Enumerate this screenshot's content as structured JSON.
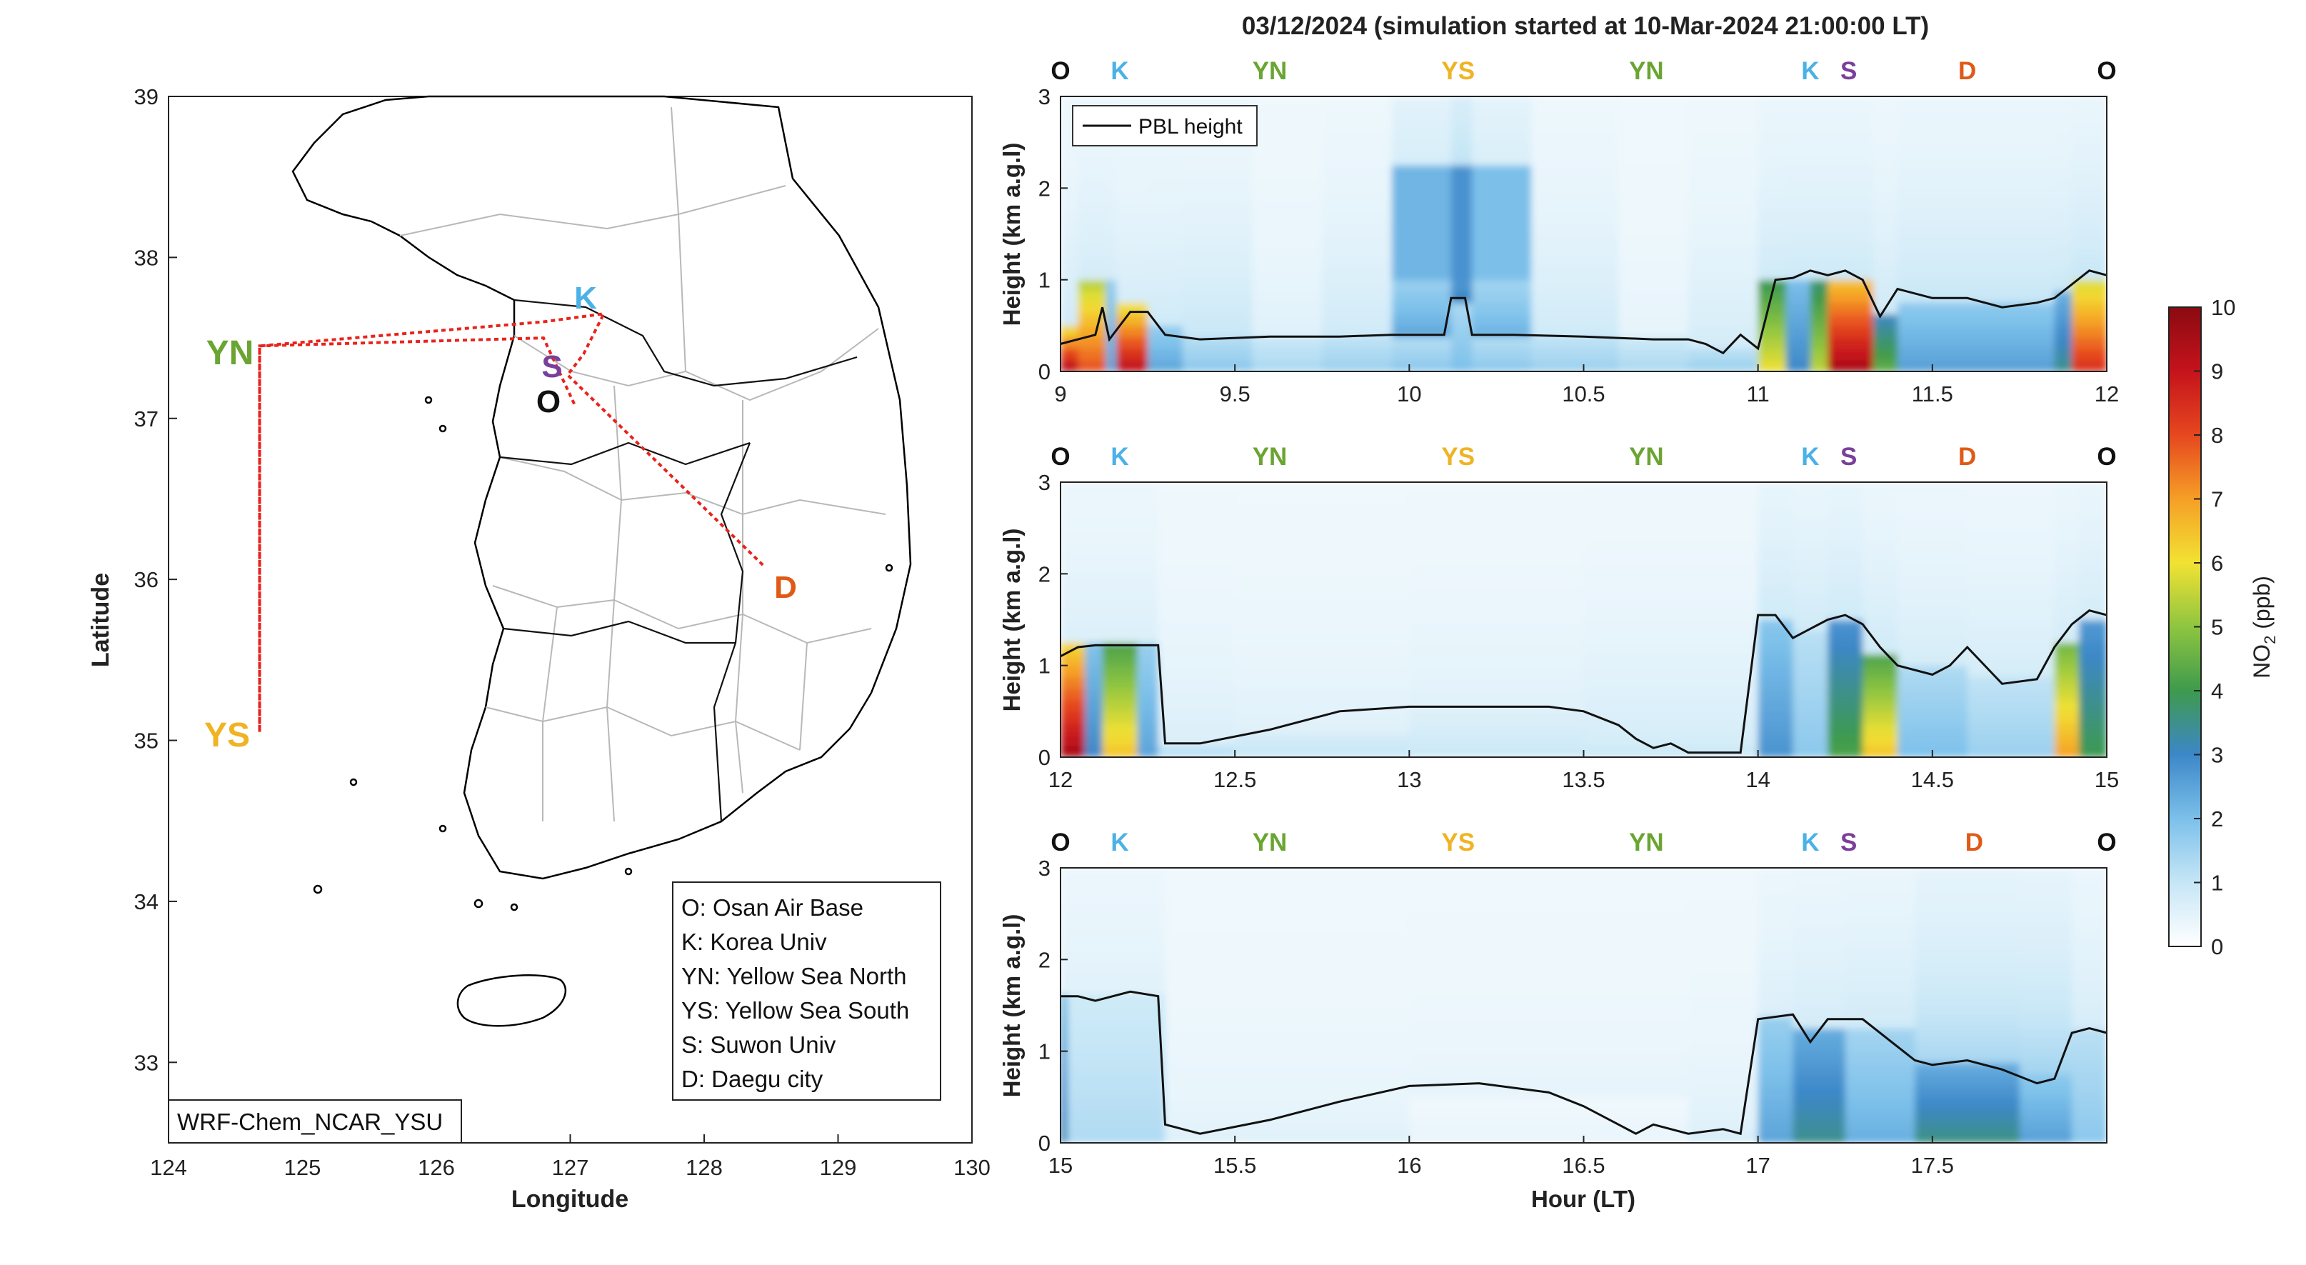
{
  "title": "03/12/2024 (simulation started at 10-Mar-2024 21:00:00 LT)",
  "colors": {
    "O": "#111111",
    "K": "#4bb1e6",
    "YN": "#6aa532",
    "YS": "#f0b323",
    "S": "#7a3f9b",
    "D": "#e05a16",
    "route": "#e8231c",
    "pbl": "#111111"
  },
  "map": {
    "xlabel": "Longitude",
    "ylabel": "Latitude",
    "xlim": [
      124,
      130
    ],
    "ylim": [
      32.5,
      39
    ],
    "xticks": [
      "124",
      "125",
      "126",
      "127",
      "128",
      "129",
      "130"
    ],
    "yticks": [
      "33",
      "34",
      "35",
      "36",
      "37",
      "38",
      "39"
    ],
    "model_label": "WRF-Chem_NCAR_YSU",
    "legend": [
      "O: Osan Air Base",
      "K: Korea Univ",
      "YN: Yellow Sea North",
      "YS: Yellow Sea South",
      "S: Suwon Univ",
      "D: Daegu city"
    ],
    "sites": [
      {
        "code": "O",
        "lon": 127.03,
        "lat": 37.09
      },
      {
        "code": "K",
        "lon": 127.03,
        "lat": 37.59
      },
      {
        "code": "YN",
        "lon": 124.68,
        "lat": 37.45
      },
      {
        "code": "YS",
        "lon": 124.68,
        "lat": 35.05
      },
      {
        "code": "S",
        "lon": 126.98,
        "lat": 37.27
      },
      {
        "code": "D",
        "lon": 128.6,
        "lat": 35.87
      }
    ],
    "route": [
      [
        127.03,
        37.09
      ],
      [
        126.8,
        37.5
      ],
      [
        124.68,
        37.45
      ],
      [
        124.68,
        35.05
      ],
      [
        124.68,
        37.45
      ],
      [
        126.8,
        37.6
      ],
      [
        127.25,
        37.65
      ],
      [
        127.1,
        37.4
      ],
      [
        126.98,
        37.27
      ],
      [
        128.45,
        36.08
      ]
    ]
  },
  "chart_data": [
    {
      "type": "heatmap",
      "title": "03/12/2024 (simulation started at 10-Mar-2024 21:00:00 LT)",
      "xlabel": "",
      "ylabel": "Height (km a.g.l)",
      "xlim": [
        9,
        12
      ],
      "ylim": [
        0,
        3
      ],
      "xticks": [
        9,
        9.5,
        10,
        10.5,
        11,
        11.5,
        12
      ],
      "yticks": [
        0,
        1,
        2,
        3
      ],
      "legend": "PBL height",
      "site_labels": [
        "O",
        "K",
        "YN",
        "YS",
        "YN",
        "K",
        "S",
        "D",
        "O"
      ],
      "site_hours": [
        9.0,
        9.17,
        9.6,
        10.14,
        10.68,
        11.15,
        11.26,
        11.6,
        12.0
      ],
      "pbl": {
        "x": [
          9.0,
          9.05,
          9.1,
          9.12,
          9.14,
          9.2,
          9.25,
          9.3,
          9.4,
          9.6,
          9.8,
          9.95,
          10.1,
          10.12,
          10.16,
          10.18,
          10.3,
          10.5,
          10.7,
          10.8,
          10.85,
          10.9,
          10.95,
          11.0,
          11.05,
          11.1,
          11.15,
          11.2,
          11.25,
          11.3,
          11.35,
          11.4,
          11.5,
          11.6,
          11.7,
          11.8,
          11.85,
          11.9,
          11.95,
          12.0
        ],
        "y": [
          0.3,
          0.35,
          0.4,
          0.7,
          0.35,
          0.65,
          0.65,
          0.4,
          0.35,
          0.38,
          0.38,
          0.4,
          0.4,
          0.8,
          0.8,
          0.4,
          0.4,
          0.38,
          0.35,
          0.35,
          0.3,
          0.2,
          0.4,
          0.25,
          1.0,
          1.02,
          1.1,
          1.05,
          1.1,
          1.0,
          0.6,
          0.9,
          0.8,
          0.8,
          0.7,
          0.75,
          0.8,
          0.95,
          1.1,
          1.05
        ]
      },
      "columns": [
        {
          "x0": 9.0,
          "x1": 9.05,
          "surf": 9.5,
          "pbl": 0.45,
          "aloft": 0.6
        },
        {
          "x0": 9.05,
          "x1": 9.13,
          "surf": 8.0,
          "pbl": 1.05,
          "aloft": 0.5
        },
        {
          "x0": 9.13,
          "x1": 9.16,
          "surf": 2.5,
          "pbl": 1.0,
          "aloft": 0.5
        },
        {
          "x0": 9.16,
          "x1": 9.25,
          "surf": 9.3,
          "pbl": 0.7,
          "aloft": 0.5
        },
        {
          "x0": 9.25,
          "x1": 9.35,
          "surf": 2.5,
          "pbl": 0.5,
          "aloft": 0.6
        },
        {
          "x0": 9.35,
          "x1": 9.55,
          "surf": 1.8,
          "pbl": 0.4,
          "aloft": 0.7
        },
        {
          "x0": 9.55,
          "x1": 9.75,
          "surf": 1.4,
          "pbl": 0.4,
          "aloft": 0.3
        },
        {
          "x0": 9.75,
          "x1": 9.95,
          "surf": 1.6,
          "pbl": 0.4,
          "aloft": 0.6
        },
        {
          "x0": 9.95,
          "x1": 10.12,
          "surf": 1.8,
          "pbl": 0.4,
          "aloft": 2.2
        },
        {
          "x0": 10.12,
          "x1": 10.18,
          "surf": 2.0,
          "pbl": 0.8,
          "aloft": 2.8
        },
        {
          "x0": 10.18,
          "x1": 10.35,
          "surf": 1.8,
          "pbl": 0.4,
          "aloft": 2.0
        },
        {
          "x0": 10.35,
          "x1": 10.6,
          "surf": 1.6,
          "pbl": 0.4,
          "aloft": 0.6
        },
        {
          "x0": 10.6,
          "x1": 10.8,
          "surf": 1.4,
          "pbl": 0.35,
          "aloft": 0.2
        },
        {
          "x0": 10.8,
          "x1": 11.0,
          "surf": 1.6,
          "pbl": 0.3,
          "aloft": 0.5
        },
        {
          "x0": 11.0,
          "x1": 11.08,
          "surf": 6.0,
          "pbl": 1.0,
          "aloft": 0.6
        },
        {
          "x0": 11.08,
          "x1": 11.15,
          "surf": 3.0,
          "pbl": 1.05,
          "aloft": 0.6
        },
        {
          "x0": 11.15,
          "x1": 11.2,
          "surf": 5.5,
          "pbl": 1.05,
          "aloft": 0.6
        },
        {
          "x0": 11.2,
          "x1": 11.33,
          "surf": 9.6,
          "pbl": 1.05,
          "aloft": 0.6
        },
        {
          "x0": 11.33,
          "x1": 11.4,
          "surf": 4.5,
          "pbl": 0.65,
          "aloft": 0.6
        },
        {
          "x0": 11.4,
          "x1": 11.85,
          "surf": 2.6,
          "pbl": 0.8,
          "aloft": 0.7
        },
        {
          "x0": 11.85,
          "x1": 11.9,
          "surf": 3.5,
          "pbl": 0.85,
          "aloft": 0.7
        },
        {
          "x0": 11.9,
          "x1": 12.0,
          "surf": 8.5,
          "pbl": 1.05,
          "aloft": 0.7
        }
      ]
    },
    {
      "type": "heatmap",
      "xlabel": "",
      "ylabel": "Height (km a.g.l)",
      "xlim": [
        12,
        15
      ],
      "ylim": [
        0,
        3
      ],
      "xticks": [
        12,
        12.5,
        13,
        13.5,
        14,
        14.5,
        15
      ],
      "yticks": [
        0,
        1,
        2,
        3
      ],
      "site_labels": [
        "O",
        "K",
        "YN",
        "YS",
        "YN",
        "K",
        "S",
        "D",
        "O"
      ],
      "site_hours": [
        12.0,
        12.17,
        12.6,
        13.14,
        13.68,
        14.15,
        14.26,
        14.6,
        15.0
      ],
      "pbl": {
        "x": [
          12.0,
          12.05,
          12.1,
          12.2,
          12.28,
          12.3,
          12.4,
          12.6,
          12.8,
          13.0,
          13.2,
          13.4,
          13.5,
          13.6,
          13.65,
          13.7,
          13.75,
          13.8,
          13.85,
          13.9,
          13.95,
          14.0,
          14.05,
          14.1,
          14.15,
          14.2,
          14.25,
          14.3,
          14.35,
          14.4,
          14.5,
          14.55,
          14.6,
          14.7,
          14.8,
          14.85,
          14.9,
          14.95,
          15.0
        ],
        "y": [
          1.1,
          1.2,
          1.22,
          1.22,
          1.22,
          0.15,
          0.15,
          0.3,
          0.5,
          0.55,
          0.55,
          0.55,
          0.5,
          0.35,
          0.2,
          0.1,
          0.15,
          0.05,
          0.05,
          0.05,
          0.05,
          1.55,
          1.55,
          1.3,
          1.4,
          1.5,
          1.55,
          1.45,
          1.2,
          1.0,
          0.9,
          1.0,
          1.2,
          0.8,
          0.85,
          1.2,
          1.45,
          1.6,
          1.55
        ]
      },
      "columns": [
        {
          "x0": 12.0,
          "x1": 12.07,
          "surf": 9.6,
          "pbl": 1.2,
          "aloft": 0.4
        },
        {
          "x0": 12.07,
          "x1": 12.12,
          "surf": 3.0,
          "pbl": 1.2,
          "aloft": 0.4
        },
        {
          "x0": 12.12,
          "x1": 12.22,
          "surf": 6.5,
          "pbl": 1.2,
          "aloft": 0.4
        },
        {
          "x0": 12.22,
          "x1": 12.28,
          "surf": 2.5,
          "pbl": 1.2,
          "aloft": 0.4
        },
        {
          "x0": 12.28,
          "x1": 12.5,
          "surf": 1.3,
          "pbl": 0.15,
          "aloft": 0.4
        },
        {
          "x0": 12.5,
          "x1": 13.0,
          "surf": 1.0,
          "pbl": 0.3,
          "aloft": 0.3
        },
        {
          "x0": 13.0,
          "x1": 13.5,
          "surf": 0.9,
          "pbl": 0.5,
          "aloft": 0.3
        },
        {
          "x0": 13.5,
          "x1": 14.0,
          "surf": 1.0,
          "pbl": 0.15,
          "aloft": 0.5
        },
        {
          "x0": 14.0,
          "x1": 14.1,
          "surf": 2.8,
          "pbl": 1.5,
          "aloft": 0.6
        },
        {
          "x0": 14.1,
          "x1": 14.2,
          "surf": 1.8,
          "pbl": 1.35,
          "aloft": 0.6
        },
        {
          "x0": 14.2,
          "x1": 14.3,
          "surf": 4.2,
          "pbl": 1.5,
          "aloft": 0.6
        },
        {
          "x0": 14.3,
          "x1": 14.4,
          "surf": 6.5,
          "pbl": 1.1,
          "aloft": 0.6
        },
        {
          "x0": 14.4,
          "x1": 14.6,
          "surf": 2.0,
          "pbl": 1.0,
          "aloft": 0.5
        },
        {
          "x0": 14.6,
          "x1": 14.85,
          "surf": 1.6,
          "pbl": 0.9,
          "aloft": 0.5
        },
        {
          "x0": 14.85,
          "x1": 14.92,
          "surf": 7.0,
          "pbl": 1.3,
          "aloft": 0.5
        },
        {
          "x0": 14.92,
          "x1": 15.0,
          "surf": 4.0,
          "pbl": 1.55,
          "aloft": 0.5
        }
      ]
    },
    {
      "type": "heatmap",
      "xlabel": "Hour (LT)",
      "ylabel": "Height (km a.g.l)",
      "xlim": [
        15,
        18
      ],
      "ylim": [
        0,
        3
      ],
      "xticks": [
        15,
        15.5,
        16,
        16.5,
        17,
        17.5
      ],
      "yticks": [
        0,
        1,
        2,
        3
      ],
      "site_labels": [
        "O",
        "K",
        "YN",
        "YS",
        "YN",
        "K",
        "S",
        "D",
        "O"
      ],
      "site_hours": [
        15.0,
        15.17,
        15.6,
        16.14,
        16.68,
        17.15,
        17.26,
        17.62,
        18.0
      ],
      "pbl": {
        "x": [
          15.0,
          15.05,
          15.1,
          15.2,
          15.28,
          15.3,
          15.4,
          15.6,
          15.8,
          16.0,
          16.2,
          16.4,
          16.5,
          16.6,
          16.65,
          16.7,
          16.8,
          16.9,
          16.95,
          17.0,
          17.1,
          17.15,
          17.2,
          17.25,
          17.3,
          17.4,
          17.45,
          17.5,
          17.6,
          17.7,
          17.8,
          17.85,
          17.9,
          17.95,
          18.0
        ],
        "y": [
          1.6,
          1.6,
          1.55,
          1.65,
          1.6,
          0.2,
          0.1,
          0.25,
          0.45,
          0.62,
          0.65,
          0.55,
          0.4,
          0.2,
          0.1,
          0.2,
          0.1,
          0.15,
          0.1,
          1.35,
          1.4,
          1.1,
          1.35,
          1.35,
          1.35,
          1.05,
          0.9,
          0.85,
          0.9,
          0.8,
          0.65,
          0.7,
          1.2,
          1.25,
          1.2
        ]
      },
      "columns": [
        {
          "x0": 15.0,
          "x1": 15.02,
          "surf": 3.2,
          "pbl": 1.6,
          "aloft": 0.3
        },
        {
          "x0": 15.02,
          "x1": 15.3,
          "surf": 1.3,
          "pbl": 1.6,
          "aloft": 0.3
        },
        {
          "x0": 15.3,
          "x1": 16.0,
          "surf": 0.6,
          "pbl": 0.3,
          "aloft": 0.2
        },
        {
          "x0": 16.0,
          "x1": 16.8,
          "surf": 0.4,
          "pbl": 0.5,
          "aloft": 0.2
        },
        {
          "x0": 16.8,
          "x1": 17.0,
          "surf": 0.8,
          "pbl": 0.15,
          "aloft": 0.3
        },
        {
          "x0": 17.0,
          "x1": 17.1,
          "surf": 2.5,
          "pbl": 1.35,
          "aloft": 0.4
        },
        {
          "x0": 17.1,
          "x1": 17.25,
          "surf": 3.5,
          "pbl": 1.3,
          "aloft": 0.5
        },
        {
          "x0": 17.25,
          "x1": 17.45,
          "surf": 2.3,
          "pbl": 1.2,
          "aloft": 0.6
        },
        {
          "x0": 17.45,
          "x1": 17.75,
          "surf": 3.6,
          "pbl": 0.85,
          "aloft": 1.2
        },
        {
          "x0": 17.75,
          "x1": 17.9,
          "surf": 2.6,
          "pbl": 0.8,
          "aloft": 1.2
        },
        {
          "x0": 17.9,
          "x1": 18.0,
          "surf": 1.8,
          "pbl": 1.2,
          "aloft": 0.5
        }
      ]
    }
  ],
  "colorbar": {
    "label_main": "NO",
    "label_sub": "2",
    "label_unit": " (ppb)",
    "min": 0,
    "max": 10,
    "ticks": [
      "0",
      "1",
      "2",
      "3",
      "4",
      "5",
      "6",
      "7",
      "8",
      "9",
      "10"
    ]
  }
}
